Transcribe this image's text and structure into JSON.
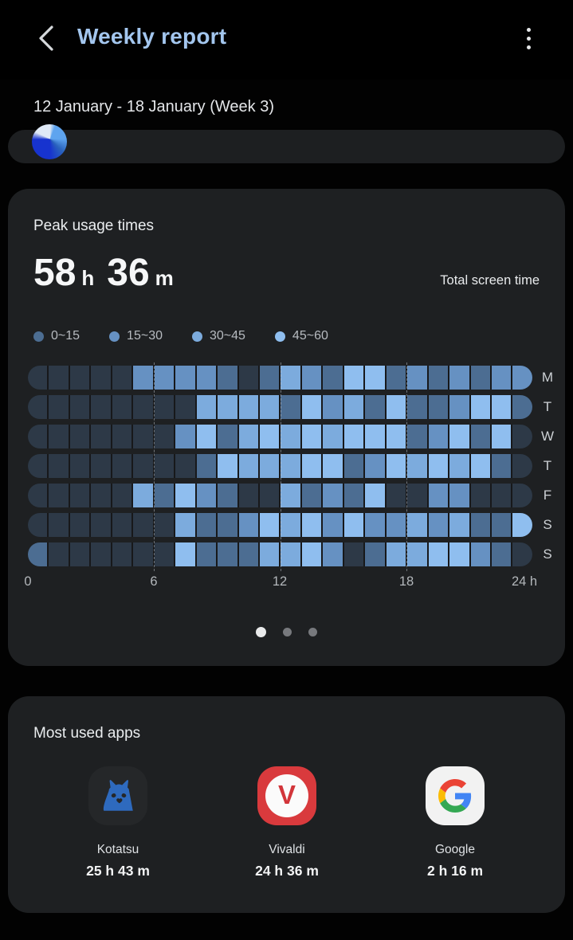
{
  "header": {
    "title": "Weekly report"
  },
  "date_range": "12 January - 18 January (Week 3)",
  "peak_card": {
    "title": "Peak usage times",
    "total": {
      "hours": "58",
      "hours_unit": "h",
      "minutes": "36",
      "minutes_unit": "m"
    },
    "total_label": "Total screen time"
  },
  "chart_data": {
    "type": "heatmap",
    "title": "Peak usage times",
    "x_range_hours": [
      0,
      24
    ],
    "x_ticks": [
      "0",
      "6",
      "12",
      "18",
      "24 h"
    ],
    "gridlines_at_hours": [
      6,
      12,
      18
    ],
    "rows": [
      "M",
      "T",
      "W",
      "T",
      "F",
      "S",
      "S"
    ],
    "legend": [
      {
        "label": "0~15",
        "color": "#4c6d92"
      },
      {
        "label": "15~30",
        "color": "#6691c2"
      },
      {
        "label": "30~45",
        "color": "#7cabdd"
      },
      {
        "label": "45~60",
        "color": "#8fbeef"
      }
    ],
    "level_colors": {
      "0": "#2d3947",
      "1": "#4c6d92",
      "2": "#6691c2",
      "3": "#7cabdd",
      "4": "#8fbeef"
    },
    "values_minutes_bucket_per_hour": [
      [
        0,
        0,
        0,
        0,
        0,
        2,
        2,
        2,
        2,
        1,
        0,
        1,
        3,
        2,
        1,
        4,
        4,
        1,
        2,
        1,
        2,
        1,
        2,
        2
      ],
      [
        0,
        0,
        0,
        0,
        0,
        0,
        0,
        0,
        3,
        3,
        3,
        3,
        1,
        4,
        2,
        3,
        1,
        4,
        1,
        1,
        2,
        4,
        4,
        1
      ],
      [
        0,
        0,
        0,
        0,
        0,
        0,
        0,
        2,
        4,
        1,
        3,
        4,
        3,
        4,
        3,
        4,
        4,
        4,
        1,
        2,
        4,
        1,
        4,
        0
      ],
      [
        0,
        0,
        0,
        0,
        0,
        0,
        0,
        0,
        1,
        4,
        3,
        3,
        3,
        4,
        4,
        1,
        2,
        4,
        3,
        4,
        3,
        4,
        1,
        0
      ],
      [
        0,
        0,
        0,
        0,
        0,
        3,
        1,
        4,
        2,
        1,
        0,
        0,
        3,
        1,
        2,
        1,
        4,
        0,
        0,
        2,
        2,
        0,
        0,
        0
      ],
      [
        0,
        0,
        0,
        0,
        0,
        0,
        0,
        3,
        1,
        1,
        2,
        4,
        3,
        4,
        2,
        4,
        2,
        2,
        3,
        2,
        3,
        1,
        1,
        4
      ],
      [
        1,
        0,
        0,
        0,
        0,
        0,
        0,
        4,
        1,
        1,
        1,
        3,
        3,
        4,
        2,
        0,
        1,
        3,
        3,
        4,
        4,
        2,
        1,
        0
      ]
    ]
  },
  "pager": {
    "count": 3,
    "active": 0
  },
  "apps_card": {
    "title": "Most used apps",
    "apps": [
      {
        "name": "Kotatsu",
        "time": "25 h 43 m"
      },
      {
        "name": "Vivaldi",
        "time": "24 h 36 m"
      },
      {
        "name": "Google",
        "time": "2 h 16 m"
      }
    ]
  }
}
